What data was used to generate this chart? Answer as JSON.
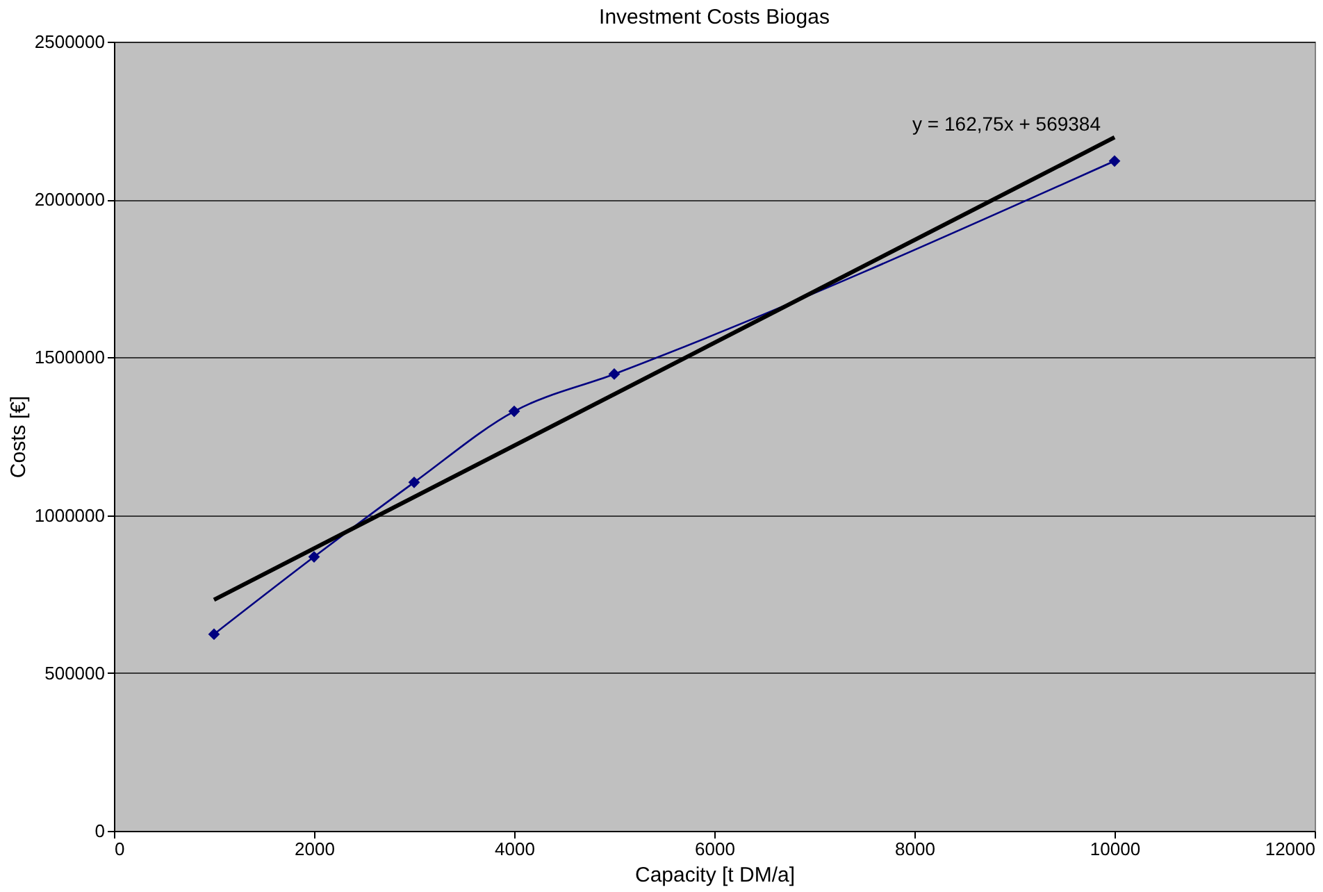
{
  "chart_data": {
    "type": "line",
    "title": "Investment Costs Biogas",
    "xlabel": "Capacity [t DM/a]",
    "ylabel": "Costs [€]",
    "x": [
      1000,
      2000,
      3000,
      4000,
      5000,
      10000
    ],
    "series": [
      {
        "color": "#000080",
        "values": [
          623000,
          868000,
          1104000,
          1329000,
          1447000,
          2122000
        ],
        "marker": "diamond",
        "line_style": "solid"
      },
      {
        "type": "line",
        "color": "#000000",
        "x": [
          1000,
          10000
        ],
        "values": [
          732000,
          2197000
        ],
        "marker": "none",
        "line_style": "solid"
      }
    ],
    "annotations": [
      {
        "text": "y = 162,75x + 569384",
        "x": 10000,
        "y": 2197000
      }
    ],
    "xlim": [
      0,
      12000
    ],
    "xticks": [
      0,
      2000,
      4000,
      6000,
      8000,
      10000,
      12000
    ],
    "ylim": [
      0,
      2500000
    ],
    "yticks": [
      0,
      500000,
      1000000,
      1500000,
      2000000,
      2500000
    ],
    "grid": "y"
  }
}
